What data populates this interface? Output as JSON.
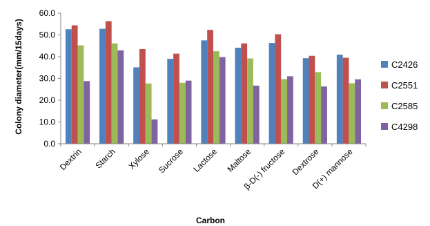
{
  "chart_data": {
    "type": "bar",
    "title": "",
    "xlabel": "Carbon",
    "ylabel": "Colony diameter(mm/15days)",
    "ylim": [
      0,
      60
    ],
    "yticks": [
      "0.0",
      "10.0",
      "20.0",
      "30.0",
      "40.0",
      "50.0",
      "60.0"
    ],
    "grid": false,
    "legend_position": "right",
    "categories": [
      "Dextrin",
      "Starch",
      "Xylose",
      "Sucrose",
      "Lactose",
      "Maltose",
      "β-D(-) fructose",
      "Dextrose",
      "D(+) mannose"
    ],
    "series": [
      {
        "name": "C2426",
        "color": "#4F81BD",
        "values": [
          52.6,
          52.8,
          35.1,
          39.0,
          47.5,
          44.1,
          46.3,
          39.3,
          40.9
        ]
      },
      {
        "name": "C2551",
        "color": "#C0504D",
        "values": [
          54.4,
          56.3,
          43.5,
          41.4,
          52.3,
          46.1,
          50.3,
          40.4,
          39.5
        ]
      },
      {
        "name": "C2585",
        "color": "#9BBB59",
        "values": [
          45.2,
          46.1,
          27.7,
          28.0,
          42.5,
          39.2,
          29.7,
          32.9,
          27.8
        ]
      },
      {
        "name": "C4298",
        "color": "#8064A2",
        "values": [
          28.8,
          42.9,
          11.2,
          29.0,
          39.8,
          26.7,
          31.0,
          26.3,
          29.6
        ]
      }
    ]
  }
}
